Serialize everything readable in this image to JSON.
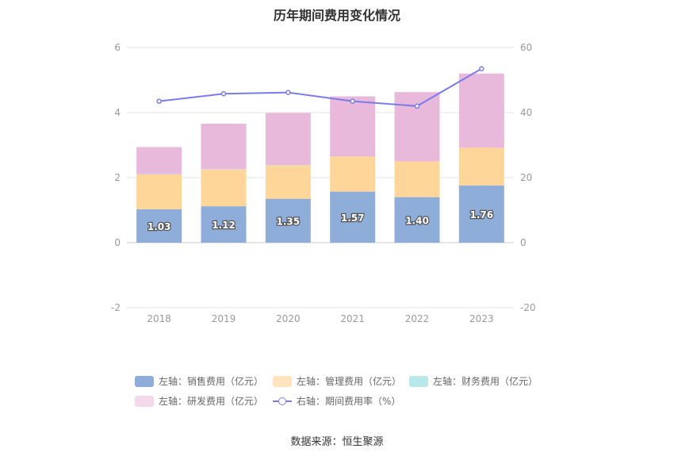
{
  "chart_data": {
    "type": "bar",
    "title": "历年期间费用变化情况",
    "categories": [
      "2018",
      "2019",
      "2020",
      "2021",
      "2022",
      "2023"
    ],
    "stacked": true,
    "left_axis": {
      "ylim": [
        -2,
        6
      ],
      "ticks": [
        "6",
        "4",
        "2",
        "0",
        "-2"
      ]
    },
    "right_axis": {
      "ylim": [
        -20,
        60
      ],
      "ticks": [
        "60",
        "40",
        "20",
        "0",
        "-20"
      ]
    },
    "series": [
      {
        "name": "左轴：销售费用（亿元）",
        "type": "bar",
        "axis": "left",
        "color": "#8eadd9",
        "values": [
          1.03,
          1.12,
          1.35,
          1.57,
          1.4,
          1.76
        ],
        "labels": [
          "1.03",
          "1.12",
          "1.35",
          "1.57",
          "1.40",
          "1.76"
        ]
      },
      {
        "name": "左轴：管理费用（亿元）",
        "type": "bar",
        "axis": "left",
        "color": "#ffd699",
        "values": [
          1.07,
          1.13,
          1.03,
          1.08,
          1.1,
          1.16
        ]
      },
      {
        "name": "左轴：财务费用（亿元）",
        "type": "bar",
        "axis": "left",
        "color": "#b9e8e8",
        "values": [
          0.01,
          0.01,
          0.01,
          0.0,
          0.0,
          0.0
        ]
      },
      {
        "name": "左轴：研发费用（亿元）",
        "type": "bar",
        "axis": "left",
        "color": "#e8b9da",
        "values": [
          0.83,
          1.4,
          1.6,
          1.85,
          2.13,
          2.28
        ]
      },
      {
        "name": "右轴：期间费用率（%）",
        "type": "line",
        "axis": "right",
        "color": "#7b7be8",
        "values": [
          43.5,
          45.8,
          46.2,
          43.5,
          42.0,
          53.5
        ]
      }
    ],
    "grid": true,
    "legend_position": "bottom"
  },
  "source": "数据来源：恒生聚源"
}
